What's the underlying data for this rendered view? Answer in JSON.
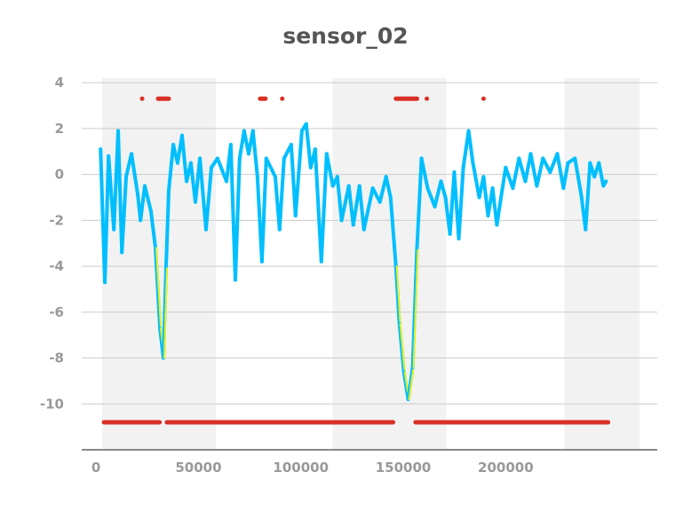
{
  "chart_data": {
    "type": "line",
    "title": "sensor_02",
    "xlabel": "",
    "ylabel": "",
    "xlim": [
      -7000,
      274000
    ],
    "ylim": [
      -12,
      4.2
    ],
    "grid": "horizontal",
    "xticks": [
      0,
      50000,
      100000,
      150000,
      200000
    ],
    "yticks": [
      4,
      2,
      0,
      -2,
      -4,
      -6,
      -8,
      -10
    ],
    "shaded_bands": [
      [
        3000,
        58500
      ],
      [
        115500,
        171000
      ],
      [
        228600,
        265400
      ]
    ],
    "colors": {
      "line": "#00bfff",
      "anomaly_line": "#e6f020",
      "marker": "#d93025",
      "band": "#f2f2f2",
      "grid": "#cccccc"
    },
    "series": [
      {
        "x": [
          2200,
          4300,
          6100,
          8700,
          10800,
          12600,
          14700,
          17300,
          20400,
          21700,
          23800,
          26800,
          29000,
          31200,
          32900,
          34200,
          35500,
          37700,
          39800,
          42000,
          44200,
          46300,
          48500,
          50700,
          53700,
          56300,
          59300,
          63700,
          65800,
          68000,
          70100,
          72300,
          74500,
          76600,
          78800,
          81000,
          83100,
          87500,
          89600,
          91800,
          95300,
          97400,
          100500,
          102600,
          104800,
          107000,
          110000,
          112600,
          115600,
          117800,
          119900,
          123400,
          125600,
          128600,
          130800,
          135100,
          138600,
          141600,
          143800,
          146400,
          148100,
          150300,
          152400,
          154600,
          156700,
          158900,
          161900,
          165400,
          168400,
          170600,
          172800,
          174900,
          177100,
          179300,
          181900,
          184000,
          187100,
          189200,
          191400,
          193600,
          195700,
          197900,
          200000,
          203500,
          206500,
          209600,
          212200,
          215200,
          218200,
          221700,
          225200,
          228200,
          230400,
          233800,
          236900,
          239000,
          241200,
          243300,
          245500,
          247700,
          249000
        ],
        "y": [
          1.1,
          -4.7,
          0.8,
          -2.4,
          1.9,
          -3.4,
          -0.1,
          0.9,
          -0.9,
          -2,
          -0.5,
          -1.6,
          -3.2,
          -6.7,
          -8,
          -4,
          -0.7,
          1.3,
          0.5,
          1.7,
          -0.3,
          0.5,
          -1.2,
          0.7,
          -2.4,
          0.3,
          0.7,
          -0.3,
          1.3,
          -4.6,
          0.7,
          1.9,
          0.9,
          1.9,
          -0.1,
          -3.8,
          0.7,
          -0.1,
          -2.4,
          0.7,
          1.3,
          -1.8,
          1.9,
          2.2,
          0.3,
          1.1,
          -3.8,
          0.9,
          -0.5,
          -0.1,
          -2,
          -0.5,
          -2.2,
          -0.5,
          -2.4,
          -0.6,
          -1.2,
          -0.1,
          -1,
          -4,
          -6.5,
          -8.6,
          -9.8,
          -8.4,
          -3.2,
          0.7,
          -0.6,
          -1.4,
          -0.3,
          -1,
          -2.6,
          0.1,
          -2.8,
          0.3,
          1.9,
          0.5,
          -1,
          -0.1,
          -1.8,
          -0.6,
          -2.2,
          -0.9,
          0.3,
          -0.6,
          0.7,
          -0.3,
          0.9,
          -0.5,
          0.7,
          0.1,
          0.9,
          -0.6,
          0.5,
          0.7,
          -0.9,
          -2.4,
          0.5,
          -0.1,
          0.5,
          -0.5,
          -0.3
        ]
      }
    ],
    "bottom_segments": {
      "y": -10.8,
      "ranges": [
        [
          3900,
          31000
        ],
        [
          34600,
          145000
        ],
        [
          156000,
          250000
        ]
      ]
    },
    "top_markers": {
      "y": 3.3,
      "ranges": [
        [
          22500,
          22500
        ],
        [
          30300,
          35500
        ],
        [
          80100,
          82700
        ],
        [
          90900,
          90900
        ],
        [
          146400,
          156700
        ],
        [
          161500,
          161500
        ],
        [
          189200,
          189200
        ]
      ]
    }
  }
}
